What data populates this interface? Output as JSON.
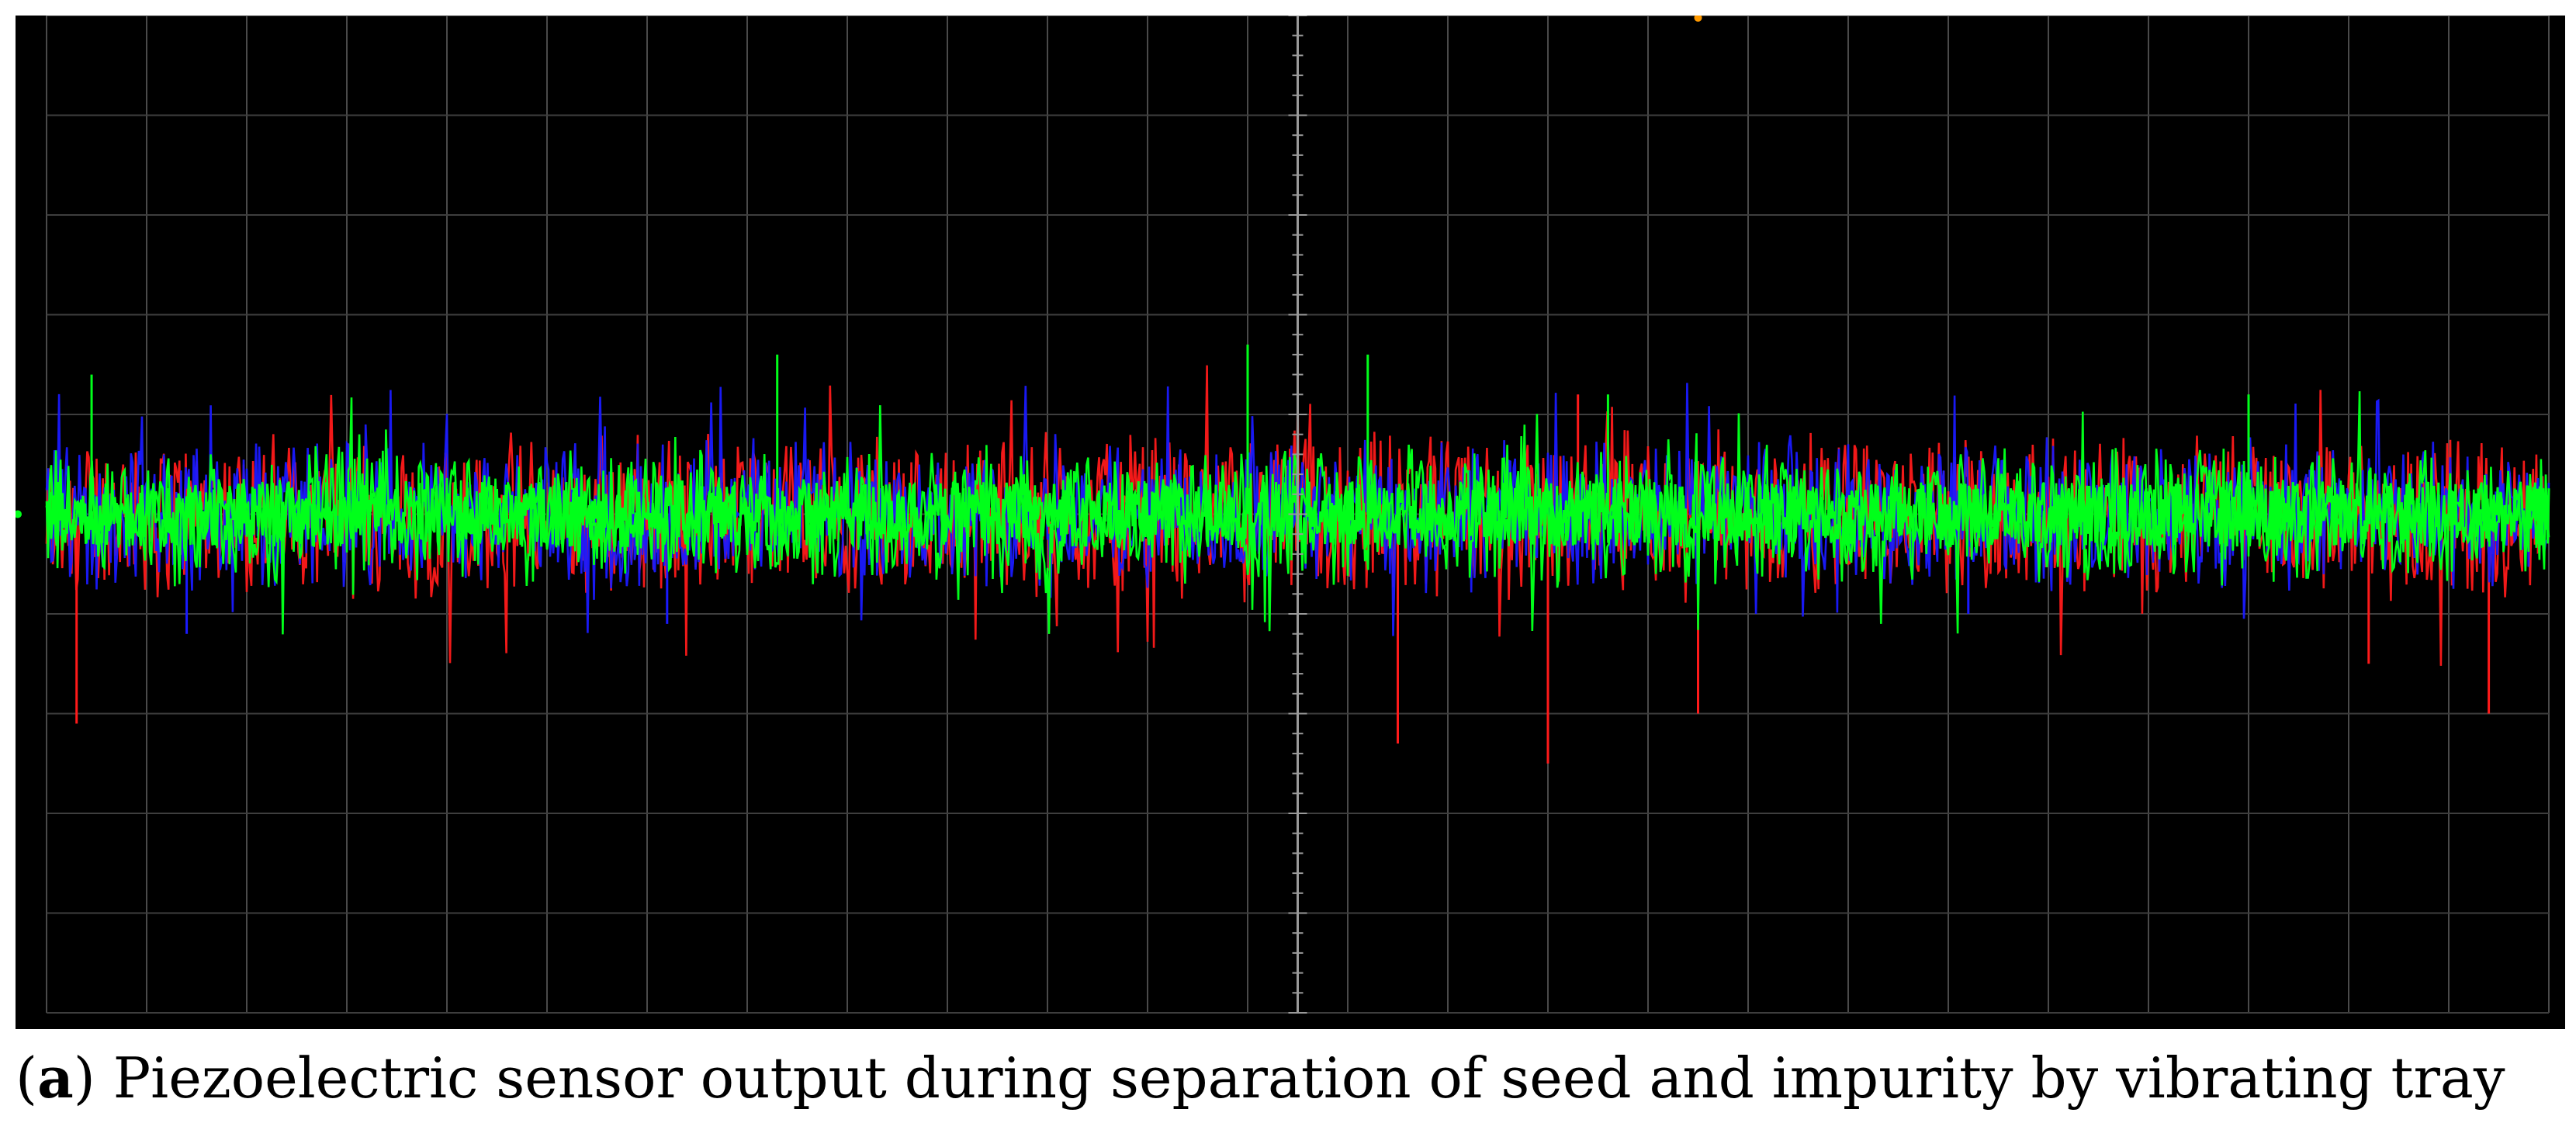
{
  "chart_data": {
    "type": "line",
    "title": "",
    "xlabel": "",
    "ylabel": "",
    "grid": true,
    "x_divisions": 25,
    "y_divisions": 10,
    "xlim": [
      0,
      25
    ],
    "ylim": [
      -5,
      5
    ],
    "series": [
      {
        "name": "red trace",
        "color": "#ff1a1a",
        "baseline": 0,
        "noise_amplitude": 0.9,
        "spikes": [
          {
            "x": 0.3,
            "y": -2.1
          },
          {
            "x": 13.5,
            "y": -2.3
          },
          {
            "x": 15.0,
            "y": -2.5
          },
          {
            "x": 15.3,
            "y": 1.2
          },
          {
            "x": 16.5,
            "y": -2.0
          },
          {
            "x": 23.2,
            "y": -1.5
          },
          {
            "x": 24.4,
            "y": -2.0
          }
        ]
      },
      {
        "name": "blue trace",
        "color": "#1a1aff",
        "baseline": 0,
        "noise_amplitude": 0.8,
        "spikes": [
          {
            "x": 1.4,
            "y": -1.2
          },
          {
            "x": 6.2,
            "y": -1.1
          },
          {
            "x": 19.2,
            "y": -1.0
          }
        ]
      },
      {
        "name": "green trace",
        "color": "#00ff1a",
        "baseline": 0,
        "noise_amplitude": 0.75,
        "spikes": [
          {
            "x": 0.45,
            "y": 1.4
          },
          {
            "x": 7.3,
            "y": 1.6
          },
          {
            "x": 12.0,
            "y": 1.7
          },
          {
            "x": 13.2,
            "y": 1.6
          },
          {
            "x": 15.6,
            "y": 1.2
          },
          {
            "x": 22.0,
            "y": 1.2
          }
        ]
      }
    ]
  },
  "caption": {
    "open_paren": "(",
    "letter": "a",
    "close_paren": ")",
    "text": " Piezoelectric sensor output during separation of seed and impurity by vibrating tray"
  }
}
